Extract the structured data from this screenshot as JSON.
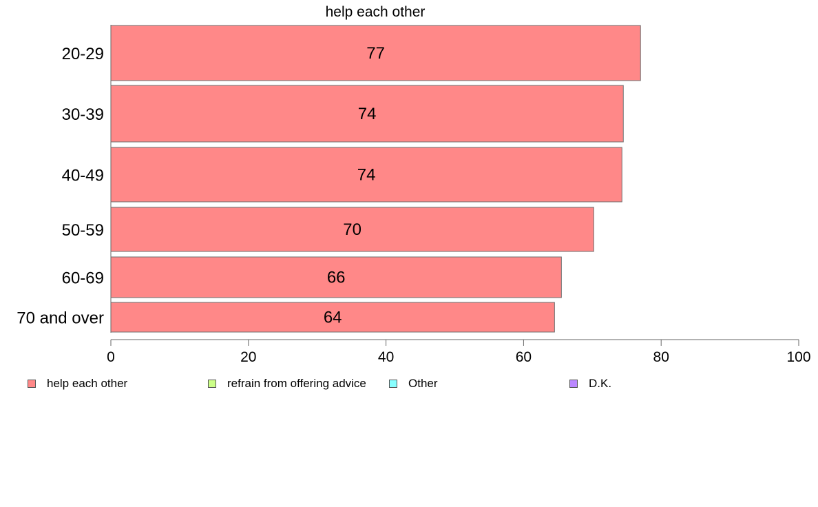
{
  "chart_data": {
    "type": "bar",
    "orientation": "horizontal",
    "title": "help each other",
    "categories": [
      "20-29",
      "30-39",
      "40-49",
      "50-59",
      "60-69",
      "70 and over"
    ],
    "series": [
      {
        "name": "help each other",
        "values": [
          77,
          74.5,
          74.3,
          70.2,
          65.5,
          64.5
        ],
        "labels": [
          "77",
          "74",
          "74",
          "70",
          "66",
          "64"
        ],
        "color": "#ff8888"
      }
    ],
    "xlim": [
      0,
      100
    ],
    "xticks": [
      "0",
      "20",
      "40",
      "60",
      "80",
      "100"
    ],
    "grid": false,
    "legend": {
      "placement": "bottom",
      "entries": [
        {
          "label": "help each other",
          "color": "#ff8888"
        },
        {
          "label": "refrain from offering advice",
          "color": "#ccff88"
        },
        {
          "label": "Other",
          "color": "#88ffff"
        },
        {
          "label": "D.K.",
          "color": "#bb88ff"
        }
      ]
    }
  }
}
